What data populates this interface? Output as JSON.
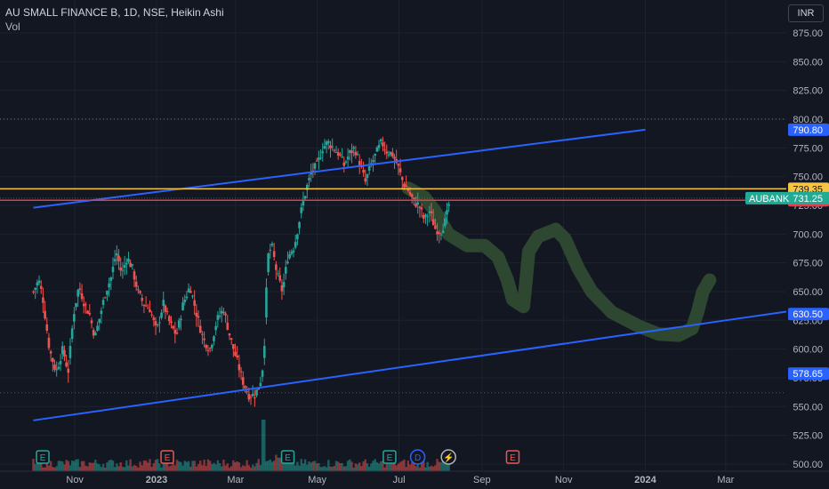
{
  "header": {
    "symbol_line": "AU SMALL FINANCE B, 1D, NSE, Heikin Ashi",
    "volume_label": "Vol",
    "currency_button": "INR"
  },
  "colors": {
    "background": "#131722",
    "grid": "#1e222d",
    "up": "#26a69a",
    "down": "#ef5350",
    "channel_line": "#2962ff",
    "yellow_line": "#f7c544",
    "red_line": "#f23645",
    "projection": "#2e4a32"
  },
  "chart_data": {
    "type": "candlestick",
    "title": "AU SMALL FINANCE B, 1D, NSE, Heikin Ashi",
    "yaxis": {
      "ticks": [
        875,
        850,
        825,
        800,
        775,
        750,
        725,
        700,
        675,
        650,
        625,
        600,
        575,
        550,
        525,
        500
      ],
      "tick_labels": [
        "875.00",
        "850.00",
        "825.00",
        "800.00",
        "775.00",
        "750.00",
        "725.00",
        "700.00",
        "675.00",
        "650.00",
        "625.00",
        "600.00",
        "575.00",
        "550.00",
        "525.00",
        "500.00"
      ],
      "range": [
        499,
        902
      ]
    },
    "xaxis": {
      "tick_labels": [
        "Nov",
        "2023",
        "Mar",
        "May",
        "Jul",
        "Sep",
        "Nov",
        "2024",
        "Mar"
      ],
      "bold_labels": [
        "2023",
        "2024"
      ],
      "tick_days": [
        -61,
        0,
        59,
        120,
        181,
        243,
        304,
        365,
        425
      ]
    },
    "price_path": [
      {
        "d": -92,
        "p": 650
      },
      {
        "d": -88,
        "p": 660
      },
      {
        "d": -85,
        "p": 645
      },
      {
        "d": -80,
        "p": 600
      },
      {
        "d": -75,
        "p": 580
      },
      {
        "d": -70,
        "p": 600
      },
      {
        "d": -66,
        "p": 580
      },
      {
        "d": -62,
        "p": 630
      },
      {
        "d": -58,
        "p": 655
      },
      {
        "d": -54,
        "p": 640
      },
      {
        "d": -50,
        "p": 630
      },
      {
        "d": -46,
        "p": 610
      },
      {
        "d": -42,
        "p": 630
      },
      {
        "d": -38,
        "p": 650
      },
      {
        "d": -34,
        "p": 662
      },
      {
        "d": -30,
        "p": 685
      },
      {
        "d": -26,
        "p": 665
      },
      {
        "d": -22,
        "p": 680
      },
      {
        "d": -18,
        "p": 670
      },
      {
        "d": -14,
        "p": 650
      },
      {
        "d": -10,
        "p": 640
      },
      {
        "d": -5,
        "p": 635
      },
      {
        "d": 0,
        "p": 615
      },
      {
        "d": 5,
        "p": 640
      },
      {
        "d": 10,
        "p": 622
      },
      {
        "d": 15,
        "p": 612
      },
      {
        "d": 20,
        "p": 640
      },
      {
        "d": 25,
        "p": 655
      },
      {
        "d": 30,
        "p": 630
      },
      {
        "d": 35,
        "p": 608
      },
      {
        "d": 40,
        "p": 600
      },
      {
        "d": 45,
        "p": 625
      },
      {
        "d": 50,
        "p": 635
      },
      {
        "d": 55,
        "p": 610
      },
      {
        "d": 60,
        "p": 590
      },
      {
        "d": 65,
        "p": 570
      },
      {
        "d": 69,
        "p": 560
      },
      {
        "d": 73,
        "p": 560
      },
      {
        "d": 77,
        "p": 568
      },
      {
        "d": 80,
        "p": 590
      },
      {
        "d": 83,
        "p": 680
      },
      {
        "d": 86,
        "p": 690
      },
      {
        "d": 90,
        "p": 665
      },
      {
        "d": 94,
        "p": 650
      },
      {
        "d": 98,
        "p": 680
      },
      {
        "d": 103,
        "p": 690
      },
      {
        "d": 108,
        "p": 720
      },
      {
        "d": 112,
        "p": 740
      },
      {
        "d": 116,
        "p": 755
      },
      {
        "d": 120,
        "p": 760
      },
      {
        "d": 124,
        "p": 775
      },
      {
        "d": 128,
        "p": 780
      },
      {
        "d": 132,
        "p": 775
      },
      {
        "d": 136,
        "p": 770
      },
      {
        "d": 140,
        "p": 760
      },
      {
        "d": 144,
        "p": 770
      },
      {
        "d": 148,
        "p": 775
      },
      {
        "d": 152,
        "p": 760
      },
      {
        "d": 156,
        "p": 745
      },
      {
        "d": 160,
        "p": 760
      },
      {
        "d": 164,
        "p": 770
      },
      {
        "d": 168,
        "p": 780
      },
      {
        "d": 172,
        "p": 772
      },
      {
        "d": 176,
        "p": 770
      },
      {
        "d": 180,
        "p": 760
      },
      {
        "d": 184,
        "p": 745
      },
      {
        "d": 188,
        "p": 738
      },
      {
        "d": 192,
        "p": 728
      },
      {
        "d": 196,
        "p": 725
      },
      {
        "d": 200,
        "p": 712
      },
      {
        "d": 204,
        "p": 720
      },
      {
        "d": 208,
        "p": 705
      },
      {
        "d": 212,
        "p": 702
      },
      {
        "d": 216,
        "p": 712
      },
      {
        "d": 219,
        "p": 730
      }
    ],
    "volume_max_label": "",
    "channel_upper": {
      "d1": -92,
      "p1": 723,
      "d2": 365,
      "p2": 790.8
    },
    "channel_lower": {
      "d1": -92,
      "p1": 538,
      "d2": 425,
      "p2": 625
    },
    "horizontal_levels": [
      {
        "name": "yellow-level-line",
        "price": 739.35,
        "color": "#f7c544"
      },
      {
        "name": "red-level-line",
        "price": 729.45,
        "color": "#f23645"
      }
    ],
    "dotted_level": 800,
    "dotted_level_2": 562,
    "projection_path": [
      {
        "d": 188,
        "p": 740
      },
      {
        "d": 200,
        "p": 732
      },
      {
        "d": 208,
        "p": 720
      },
      {
        "d": 218,
        "p": 700
      },
      {
        "d": 232,
        "p": 690
      },
      {
        "d": 245,
        "p": 690
      },
      {
        "d": 255,
        "p": 680
      },
      {
        "d": 262,
        "p": 660
      },
      {
        "d": 266,
        "p": 643
      },
      {
        "d": 274,
        "p": 637
      },
      {
        "d": 276,
        "p": 660
      },
      {
        "d": 278,
        "p": 685
      },
      {
        "d": 285,
        "p": 698
      },
      {
        "d": 298,
        "p": 704
      },
      {
        "d": 305,
        "p": 696
      },
      {
        "d": 315,
        "p": 670
      },
      {
        "d": 325,
        "p": 650
      },
      {
        "d": 340,
        "p": 632
      },
      {
        "d": 360,
        "p": 620
      },
      {
        "d": 375,
        "p": 613
      },
      {
        "d": 390,
        "p": 612
      },
      {
        "d": 400,
        "p": 618
      },
      {
        "d": 404,
        "p": 632
      },
      {
        "d": 408,
        "p": 650
      },
      {
        "d": 413,
        "p": 660
      }
    ],
    "price_labels": [
      {
        "name": "price-label-upper-channel",
        "text": "790.80",
        "price": 790.8,
        "bg": "#2962ff",
        "fg": "#ffffff"
      },
      {
        "name": "price-label-yellow",
        "text": "739.35",
        "price": 739.35,
        "bg": "#f7c544",
        "fg": "#131722"
      },
      {
        "name": "price-label-red",
        "text": "729.45",
        "price": 729.45,
        "bg": "#f23645",
        "fg": "#ffffff"
      },
      {
        "name": "price-label-630",
        "text": "630.50",
        "price": 630.5,
        "bg": "#2962ff",
        "fg": "#ffffff"
      },
      {
        "name": "price-label-578",
        "text": "578.65",
        "price": 578.65,
        "bg": "#2962ff",
        "fg": "#ffffff"
      }
    ],
    "current_price": {
      "ticker": "AUBANK",
      "text": "731.25",
      "price": 731.25,
      "bg": "#22ab94"
    },
    "events": [
      {
        "name": "earnings-event-1",
        "label": "E",
        "d": -85,
        "color": "#26a69a"
      },
      {
        "name": "earnings-event-2",
        "label": "E",
        "d": 8,
        "color": "#ef5350"
      },
      {
        "name": "earnings-event-3",
        "label": "E",
        "d": 98,
        "color": "#26a69a"
      },
      {
        "name": "earnings-event-4",
        "label": "E",
        "d": 174,
        "color": "#26a69a"
      },
      {
        "name": "dividend-event",
        "label": "D",
        "d": 195,
        "color": "#2962ff"
      },
      {
        "name": "split-event",
        "label": "⚡",
        "d": 218,
        "color": "#b2b5be"
      },
      {
        "name": "earnings-event-5",
        "label": "E",
        "d": 266,
        "color": "#ef5350"
      }
    ]
  }
}
